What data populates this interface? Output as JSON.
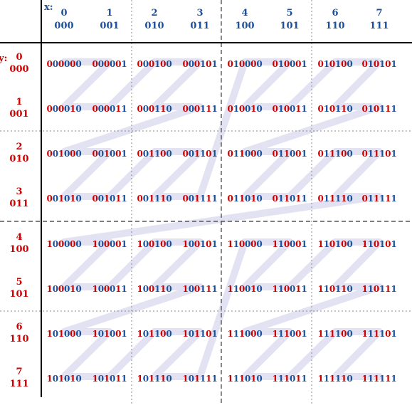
{
  "x_axis": {
    "label": "x:",
    "columns": [
      {
        "decimal": "0",
        "binary": "000"
      },
      {
        "decimal": "1",
        "binary": "001"
      },
      {
        "decimal": "2",
        "binary": "010"
      },
      {
        "decimal": "3",
        "binary": "011"
      },
      {
        "decimal": "4",
        "binary": "100"
      },
      {
        "decimal": "5",
        "binary": "101"
      },
      {
        "decimal": "6",
        "binary": "110"
      },
      {
        "decimal": "7",
        "binary": "111"
      }
    ]
  },
  "y_axis": {
    "label": "y:",
    "rows": [
      {
        "decimal": "0",
        "binary": "000"
      },
      {
        "decimal": "1",
        "binary": "001"
      },
      {
        "decimal": "2",
        "binary": "010"
      },
      {
        "decimal": "3",
        "binary": "011"
      },
      {
        "decimal": "4",
        "binary": "100"
      },
      {
        "decimal": "5",
        "binary": "101"
      },
      {
        "decimal": "6",
        "binary": "110"
      },
      {
        "decimal": "7",
        "binary": "111"
      }
    ]
  },
  "grid": [
    [
      "000000",
      "000001",
      "000100",
      "000101",
      "010000",
      "010001",
      "010100",
      "010101"
    ],
    [
      "000010",
      "000011",
      "000110",
      "000111",
      "010010",
      "010011",
      "010110",
      "010111"
    ],
    [
      "001000",
      "001001",
      "001100",
      "001101",
      "011000",
      "011001",
      "011100",
      "011101"
    ],
    [
      "001010",
      "001011",
      "001110",
      "001111",
      "011010",
      "011011",
      "011110",
      "011111"
    ],
    [
      "100000",
      "100001",
      "100100",
      "100101",
      "110000",
      "110001",
      "110100",
      "110101"
    ],
    [
      "100010",
      "100011",
      "100110",
      "100111",
      "110010",
      "110011",
      "110110",
      "110111"
    ],
    [
      "101000",
      "101001",
      "101100",
      "101101",
      "111000",
      "111001",
      "111100",
      "111101"
    ],
    [
      "101010",
      "101011",
      "101110",
      "101111",
      "111010",
      "111011",
      "111110",
      "111111"
    ]
  ],
  "colors": {
    "y_bit": "#cc0000",
    "x_bit": "#1a4f9c",
    "path": "#e2e2f2",
    "axis": "#000000",
    "divider": "#888888"
  }
}
